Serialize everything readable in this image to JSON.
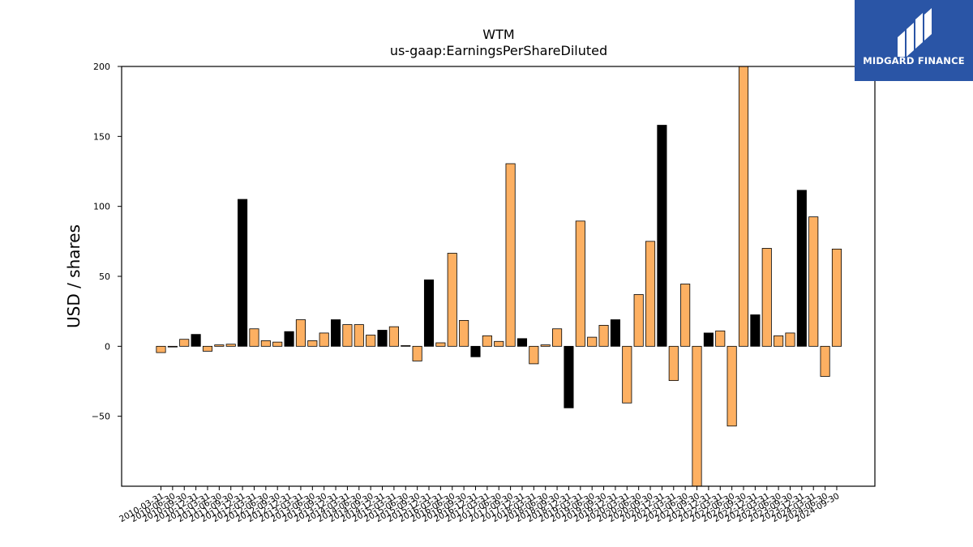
{
  "chart_data": {
    "type": "bar",
    "title": "WTM",
    "subtitle": "us-gaap:EarningsPerShareDiluted",
    "ylabel": "USD / shares",
    "xlabel": "",
    "ylim": [
      -100,
      200
    ],
    "yticks": [
      200,
      150,
      100,
      50,
      0,
      -50
    ],
    "ytick_labels": [
      "200",
      "150",
      "100",
      "50",
      "0",
      "−50"
    ],
    "grid": false,
    "colors": {
      "quarterly": "#fdb062",
      "annual": "#000000",
      "edge": "#000000"
    },
    "categories": [
      "2010-03-31",
      "2010-06-30",
      "2010-09-30",
      "2010-12-31",
      "2011-03-31",
      "2011-06-30",
      "2011-09-30",
      "2011-12-31",
      "2012-03-31",
      "2012-06-30",
      "2012-09-30",
      "2012-12-31",
      "2013-03-31",
      "2013-06-30",
      "2013-09-30",
      "2013-12-31",
      "2014-03-31",
      "2014-06-30",
      "2014-09-30",
      "2014-12-31",
      "2015-03-31",
      "2015-06-30",
      "2015-09-30",
      "2015-12-31",
      "2016-03-31",
      "2016-06-30",
      "2016-09-30",
      "2016-12-31",
      "2017-03-31",
      "2017-06-30",
      "2017-09-30",
      "2017-12-31",
      "2018-03-31",
      "2018-06-30",
      "2018-09-30",
      "2018-12-31",
      "2019-03-31",
      "2019-06-30",
      "2019-09-30",
      "2019-12-31",
      "2020-03-31",
      "2020-06-30",
      "2020-09-30",
      "2020-12-31",
      "2021-03-31",
      "2021-06-30",
      "2021-09-30",
      "2021-12-31",
      "2022-03-31",
      "2022-06-30",
      "2022-09-30",
      "2022-12-31",
      "2023-03-31",
      "2023-06-30",
      "2023-09-30",
      "2023-12-31",
      "2024-03-31",
      "2024-06-30",
      "2024-09-30"
    ],
    "series": [
      {
        "values": [
          -4.5,
          -0.5,
          5,
          8.5,
          -3.5,
          1,
          1.5,
          105,
          12.5,
          4,
          3,
          10.5,
          19,
          4,
          9.5,
          19,
          15.5,
          15.5,
          8,
          11.5,
          14,
          0.5,
          -10.5,
          47.5,
          2.5,
          66.5,
          18.5,
          -7.5,
          7.5,
          3.5,
          130.5,
          5.5,
          -12.5,
          1,
          12.5,
          -44,
          89.5,
          6.5,
          15,
          19,
          -40.5,
          37,
          75,
          158,
          -24.5,
          44.5,
          -100,
          9.5,
          11,
          -57,
          204,
          22.5,
          70,
          7.5,
          9.5,
          111.5,
          92.5,
          -21.5,
          69.5
        ],
        "annual": [
          false,
          false,
          false,
          true,
          false,
          false,
          false,
          true,
          false,
          false,
          false,
          true,
          false,
          false,
          false,
          true,
          false,
          false,
          false,
          true,
          false,
          false,
          false,
          true,
          false,
          false,
          false,
          true,
          false,
          false,
          false,
          true,
          false,
          false,
          false,
          true,
          false,
          false,
          false,
          true,
          false,
          false,
          false,
          true,
          false,
          false,
          false,
          true,
          false,
          false,
          false,
          true,
          false,
          false,
          false,
          true,
          false,
          false,
          false
        ]
      }
    ]
  },
  "logo": {
    "text": "MIDGARD FINANCE",
    "bg": "#2a55a6"
  }
}
